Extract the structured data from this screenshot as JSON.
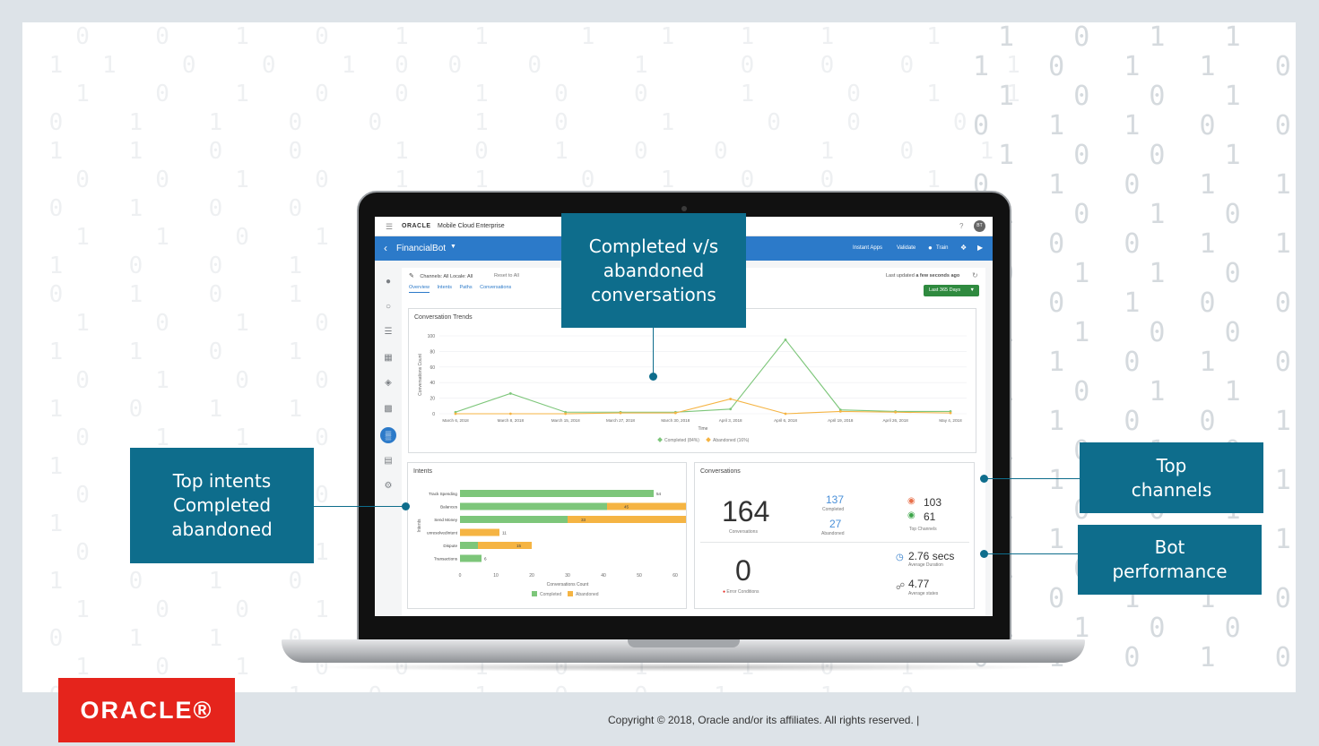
{
  "slide": {
    "copyright": "Copyright © 2018, Oracle and/or its affiliates. All rights reserved.  |",
    "logo_text": "ORACLE®"
  },
  "callouts": {
    "completed_vs_abandoned": [
      "Completed v/s",
      "abandoned",
      "conversations"
    ],
    "top_intents": [
      "Top intents",
      "Completed",
      "abandoned"
    ],
    "top_channels": [
      "Top",
      "channels"
    ],
    "bot_performance": [
      "Bot",
      "performance"
    ]
  },
  "app": {
    "topbar": {
      "menu_icon": "hamburger-icon",
      "brand": "ORACLE",
      "product": "Mobile Cloud Enterprise",
      "help": "?",
      "avatar": "BT"
    },
    "header": {
      "back_icon": "chevron-left-icon",
      "bot_name": "FinancialBot",
      "actions": [
        "Instant Apps",
        "Validate",
        "Train"
      ],
      "icons": [
        "train-icon",
        "bug-icon",
        "play-icon"
      ]
    },
    "sidenav": [
      "bot-icon",
      "intents-icon",
      "entities-icon",
      "flows-icon",
      "resources-icon",
      "settings-list-icon",
      "insights-icon",
      "channels-icon",
      "gear-icon"
    ],
    "filters": {
      "channels": "Channels: All",
      "locale": "Locale: All",
      "reset": "Reset to All"
    },
    "tabs": [
      "Overview",
      "Intents",
      "Paths",
      "Conversations"
    ],
    "last_updated_label": "Last updated",
    "last_updated_value": "a few seconds ago",
    "range_button": "Last 365 Days",
    "colors": {
      "completed": "#7dc67a",
      "abandoned": "#f5b443",
      "accent": "#2c7ac9",
      "callout": "#0e6d8c"
    }
  },
  "chart_data": [
    {
      "type": "line",
      "title": "Conversation Trends",
      "xlabel": "Time",
      "ylabel": "Conversations Count",
      "categories": [
        "March 6, 2018",
        "March 8, 2018",
        "March 15, 2018",
        "March 27, 2018",
        "March 30, 2018",
        "April 3, 2018",
        "April 6, 2018",
        "April 19, 2018",
        "April 26, 2018",
        "May 4, 2018"
      ],
      "y_ticks": [
        0,
        20,
        40,
        60,
        80,
        100
      ],
      "ylim": [
        0,
        100
      ],
      "series": [
        {
          "name": "Completed (84%)",
          "values": [
            2,
            26,
            2,
            2,
            2,
            6,
            95,
            5,
            3,
            3
          ]
        },
        {
          "name": "Abandoned (16%)",
          "values": [
            0,
            0,
            0,
            1,
            1,
            19,
            0,
            3,
            2,
            1
          ]
        }
      ],
      "legend": "bottom",
      "grid": true
    },
    {
      "type": "bar",
      "title": "Intents",
      "orientation": "horizontal",
      "stacked": true,
      "xlabel": "Conversations Count",
      "ylabel": "Intents",
      "categories": [
        "Track Spending",
        "Balances",
        "Send Money",
        "unresolvedIntent",
        "Dispute",
        "Transactions"
      ],
      "x_ticks": [
        0,
        10,
        20,
        30,
        40,
        50,
        60
      ],
      "xlim": [
        0,
        60
      ],
      "series": [
        {
          "name": "Completed",
          "values": [
            54,
            41,
            30,
            0,
            5,
            6
          ]
        },
        {
          "name": "Abandoned",
          "values": [
            0,
            4,
            3,
            11,
            10,
            0
          ]
        }
      ],
      "labels": [
        "54",
        "45",
        "33",
        "11",
        "15",
        "6"
      ],
      "legend": "bottom"
    }
  ],
  "conversations": {
    "title": "Conversations",
    "total": "164",
    "total_label": "Conversations",
    "completed": "137",
    "completed_label": "Completed",
    "abandoned": "27",
    "abandoned_label": "Abandoned",
    "channel_1": "103",
    "channel_2": "61",
    "channels_label": "Top Channels",
    "errors": "0",
    "errors_label": "Error Conditions",
    "duration": "2.76 secs",
    "duration_label": "Average Duration",
    "states": "4.77",
    "states_label": "Average states"
  }
}
